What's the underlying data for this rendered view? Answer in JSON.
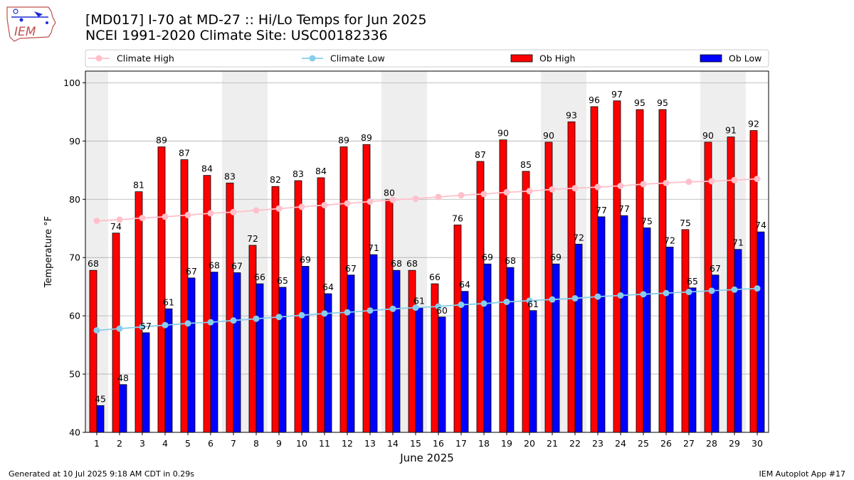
{
  "header": {
    "title_line1": "[MD017] I-70 at MD-27 :: Hi/Lo Temps for Jun 2025",
    "title_line2": "NCEI 1991-2020 Climate Site: USC00182336",
    "logo_text": "IEM"
  },
  "footer": {
    "left": "Generated at 10 Jul 2025 9:18 AM CDT in 0.29s",
    "right": "IEM Autoplot App #17"
  },
  "colors": {
    "ob_high": "#ff0000",
    "ob_low": "#0000ff",
    "climate_high": "#ffc0cb",
    "climate_low": "#87ceeb",
    "weekend_shade": "#eeeeee",
    "grid": "#b0b0b0"
  },
  "chart_data": {
    "type": "bar",
    "title": "[MD017] I-70 at MD-27 :: Hi/Lo Temps for Jun 2025",
    "xlabel": "June 2025",
    "ylabel": "Temperature °F",
    "ylim": [
      40,
      102
    ],
    "yticks": [
      40,
      50,
      60,
      70,
      80,
      90,
      100
    ],
    "grid": true,
    "legend": [
      {
        "label": "Climate High",
        "kind": "line"
      },
      {
        "label": "Climate Low",
        "kind": "line"
      },
      {
        "label": "Ob High",
        "kind": "bar"
      },
      {
        "label": "Ob Low",
        "kind": "bar"
      }
    ],
    "categories": [
      "1",
      "2",
      "3",
      "4",
      "5",
      "6",
      "7",
      "8",
      "9",
      "10",
      "11",
      "12",
      "13",
      "14",
      "15",
      "16",
      "17",
      "18",
      "19",
      "20",
      "21",
      "22",
      "23",
      "24",
      "25",
      "26",
      "27",
      "28",
      "29",
      "30"
    ],
    "shaded_days": [
      1,
      7,
      8,
      14,
      15,
      21,
      22,
      28,
      29
    ],
    "series": [
      {
        "name": "Ob High",
        "type": "bar",
        "values": [
          68,
          74,
          81,
          89,
          87,
          84,
          83,
          72,
          82,
          83,
          84,
          89,
          89,
          80,
          68,
          66,
          76,
          87,
          90,
          85,
          90,
          93,
          96,
          97,
          95,
          95,
          75,
          90,
          91,
          92
        ],
        "exact": [
          67.8,
          74.2,
          81.3,
          89.0,
          86.8,
          84.1,
          82.8,
          72.1,
          82.2,
          83.2,
          83.7,
          89.0,
          89.4,
          80.0,
          67.8,
          65.5,
          75.6,
          86.5,
          90.2,
          84.8,
          89.8,
          93.3,
          95.9,
          96.9,
          95.4,
          95.4,
          74.8,
          89.8,
          90.7,
          91.8
        ]
      },
      {
        "name": "Ob Low",
        "type": "bar",
        "values": [
          45,
          48,
          57,
          61,
          67,
          68,
          67,
          66,
          65,
          69,
          64,
          67,
          71,
          68,
          61,
          60,
          64,
          69,
          68,
          61,
          69,
          72,
          77,
          77,
          75,
          72,
          65,
          67,
          71,
          74
        ],
        "exact": [
          44.6,
          48.2,
          57.1,
          61.2,
          66.5,
          67.5,
          67.4,
          65.5,
          64.9,
          68.5,
          63.8,
          67.0,
          70.5,
          67.8,
          61.4,
          59.8,
          64.2,
          68.9,
          68.3,
          60.9,
          68.9,
          72.3,
          77.0,
          77.2,
          75.1,
          71.8,
          64.8,
          67.0,
          71.4,
          74.4
        ]
      },
      {
        "name": "Climate High",
        "type": "line",
        "values": [
          76.3,
          76.5,
          76.8,
          77.0,
          77.3,
          77.6,
          77.8,
          78.1,
          78.4,
          78.7,
          79.0,
          79.3,
          79.6,
          79.9,
          80.1,
          80.4,
          80.7,
          80.9,
          81.2,
          81.4,
          81.7,
          81.9,
          82.1,
          82.3,
          82.6,
          82.8,
          83.0,
          83.1,
          83.3,
          83.5
        ]
      },
      {
        "name": "Climate Low",
        "type": "line",
        "values": [
          57.5,
          57.8,
          58.1,
          58.4,
          58.7,
          58.9,
          59.2,
          59.5,
          59.8,
          60.1,
          60.4,
          60.6,
          60.9,
          61.2,
          61.4,
          61.6,
          61.9,
          62.1,
          62.4,
          62.6,
          62.8,
          63.0,
          63.3,
          63.5,
          63.7,
          63.9,
          64.1,
          64.3,
          64.5,
          64.7
        ]
      }
    ]
  }
}
